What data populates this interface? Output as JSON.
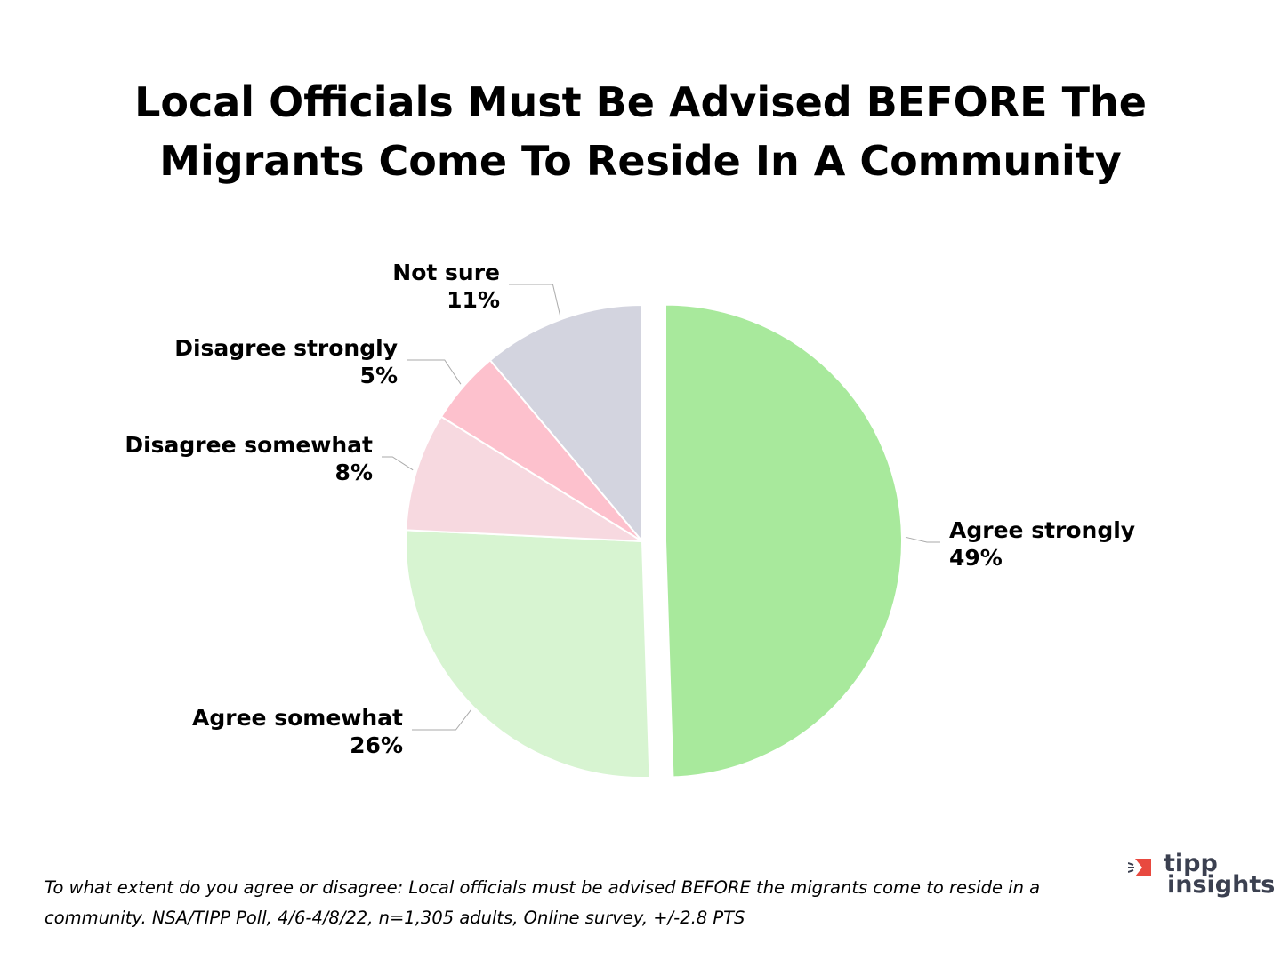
{
  "chart_data": {
    "type": "pie",
    "title": "Local Officials Must Be Advised BEFORE The Migrants Come To Reside In A Community",
    "categories": [
      "Agree strongly",
      "Agree somewhat",
      "Disagree somewhat",
      "Disagree strongly",
      "Not sure"
    ],
    "values": [
      49,
      26,
      8,
      5,
      11
    ],
    "value_labels": [
      "49%",
      "26%",
      "8%",
      "5%",
      "11%"
    ],
    "colors": [
      "#a8e99c",
      "#d7f4d1",
      "#f7d9e0",
      "#fdc1cd",
      "#d3d4df"
    ],
    "exploded": [
      true,
      false,
      false,
      false,
      false
    ],
    "footnote": "To what extent do you agree or disagree: Local officials must be advised BEFORE the migrants come to reside in a community. NSA/TIPP Poll, 4/6-4/8/22, n=1,305 adults, Online survey, +/-2.8 PTS"
  },
  "logo": {
    "line1": "tipp",
    "line2": "insights"
  }
}
